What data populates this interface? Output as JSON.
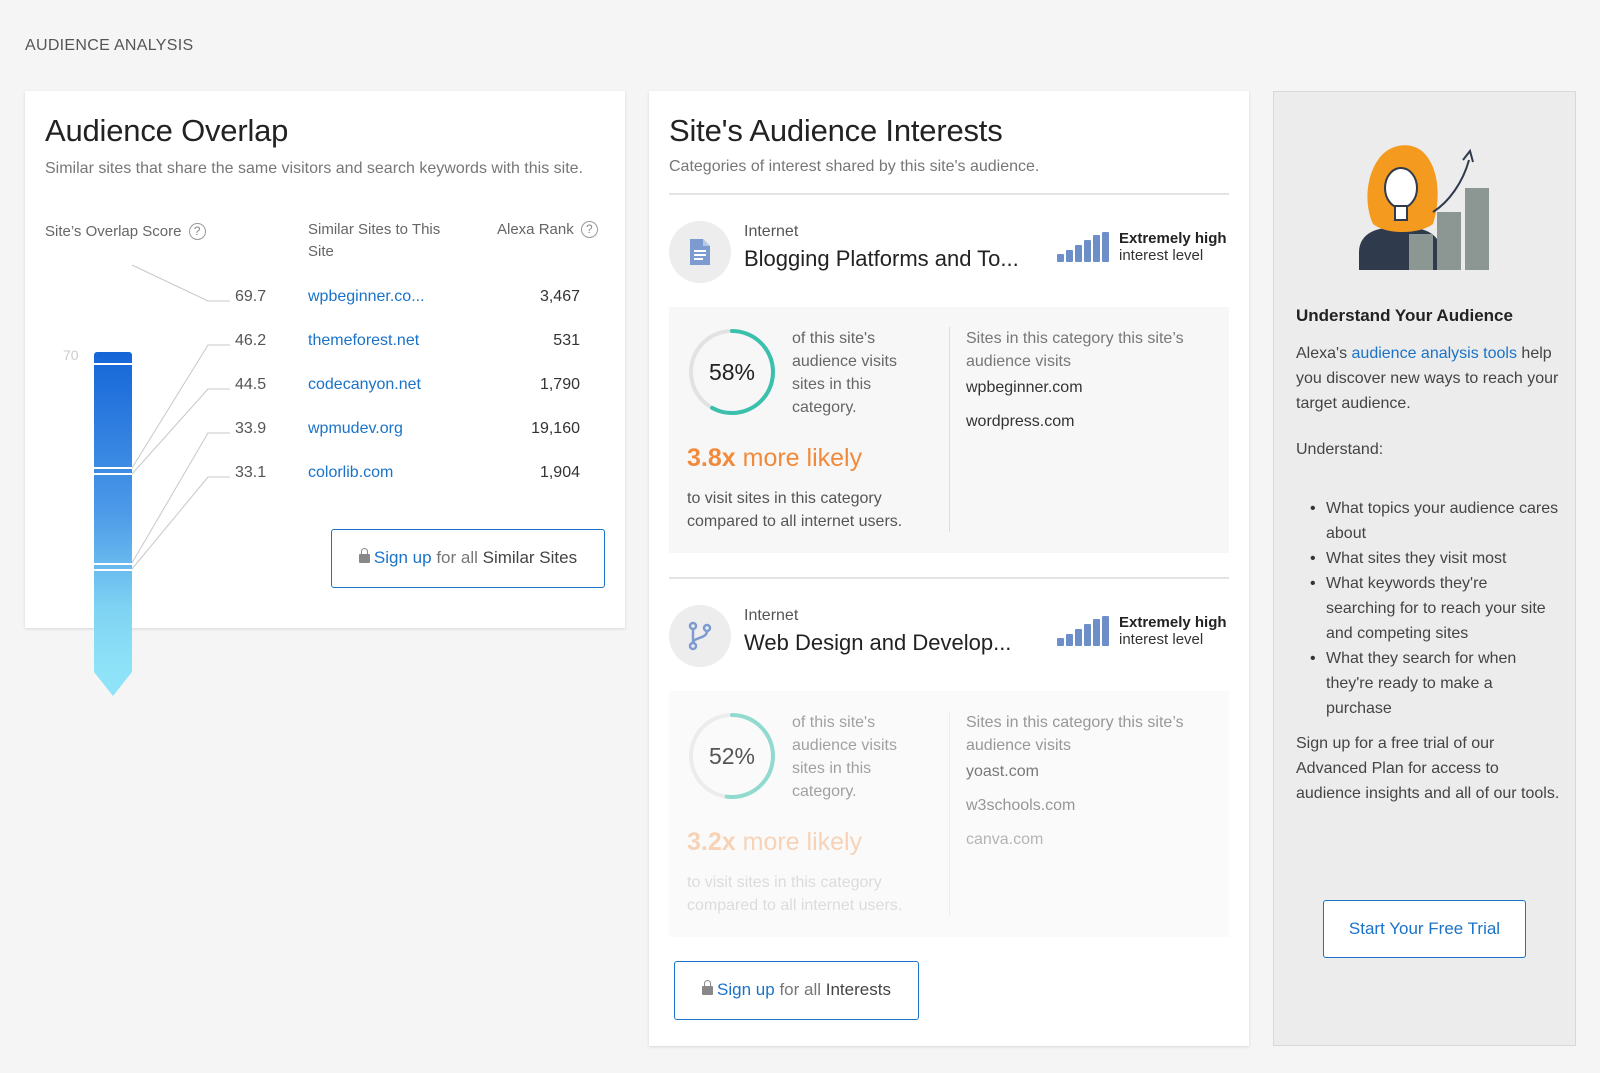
{
  "section_title": "AUDIENCE ANALYSIS",
  "overlap": {
    "title": "Audience Overlap",
    "subtitle": "Similar sites that share the same visitors and search keywords with this site.",
    "score_header": "Site’s Overlap Score",
    "help_glyph": "?",
    "similar_header": "Similar Sites to This Site",
    "rank_header": "Alexa Rank",
    "scale_max": "70",
    "rows": [
      {
        "score": "69.7",
        "site": "wpbeginner.co...",
        "rank": "3,467"
      },
      {
        "score": "46.2",
        "site": "themeforest.net",
        "rank": "531"
      },
      {
        "score": "44.5",
        "site": "codecanyon.net",
        "rank": "1,790"
      },
      {
        "score": "33.9",
        "site": "wpmudev.org",
        "rank": "19,160"
      },
      {
        "score": "33.1",
        "site": "colorlib.com",
        "rank": "1,904"
      }
    ],
    "signup": {
      "link": "Sign up",
      "middle": "for all",
      "target": "Similar Sites"
    }
  },
  "interests": {
    "title": "Site's Audience Interests",
    "subtitle": "Categories of interest shared by this site's audience.",
    "categories": [
      {
        "icon": "document-icon",
        "parent": "Internet",
        "name": "Blogging Platforms and To...",
        "level_strong": "Extremely high",
        "level_rest": "interest level",
        "percent": "58%",
        "percent_value": 58,
        "percent_text": "of this site's audience visits sites in this category.",
        "likely_value": "3.8x",
        "likely_text": "more likely",
        "likely_sub": "to visit sites in this category compared to all internet users.",
        "sites_head": "Sites in this category this site’s audience visits",
        "sites": [
          "wpbeginner.com",
          "wordpress.com"
        ]
      },
      {
        "icon": "branch-icon",
        "parent": "Internet",
        "name": "Web Design and Develop...",
        "level_strong": "Extremely high",
        "level_rest": "interest level",
        "percent": "52%",
        "percent_value": 52,
        "percent_text": "of this site's audience visits sites in this category.",
        "likely_value": "3.2x",
        "likely_text": "more likely",
        "likely_sub": "to visit sites in this category compared to all internet users.",
        "sites_head": "Sites in this category this site’s audience visits",
        "sites": [
          "yoast.com",
          "w3schools.com",
          "canva.com"
        ]
      }
    ],
    "signup": {
      "link": "Sign up",
      "middle": "for all",
      "target": "Interests"
    }
  },
  "promo": {
    "illustration": "audience-growth-illustration",
    "title": "Understand Your Audience",
    "intro_prefix": "Alexa's ",
    "intro_link": "audience analysis tools",
    "intro_suffix": "help you discover new ways to reach your target audience.",
    "understand_label": "Understand:",
    "bullets": [
      "What topics your audience cares about",
      "What sites they visit most",
      "What keywords they're searching for to reach your site and competing sites",
      "What they search for when they're ready to make a purchase"
    ],
    "closing": "Sign up for a free trial of our Advanced Plan for access to audience insights and all of our tools.",
    "cta": "Start Your Free Trial"
  },
  "colors": {
    "accent": "#1a73c9",
    "likely_orange": "#f28a3c",
    "donut_teal": "#3cc0ae",
    "level_bars": "#6c8fc9"
  }
}
